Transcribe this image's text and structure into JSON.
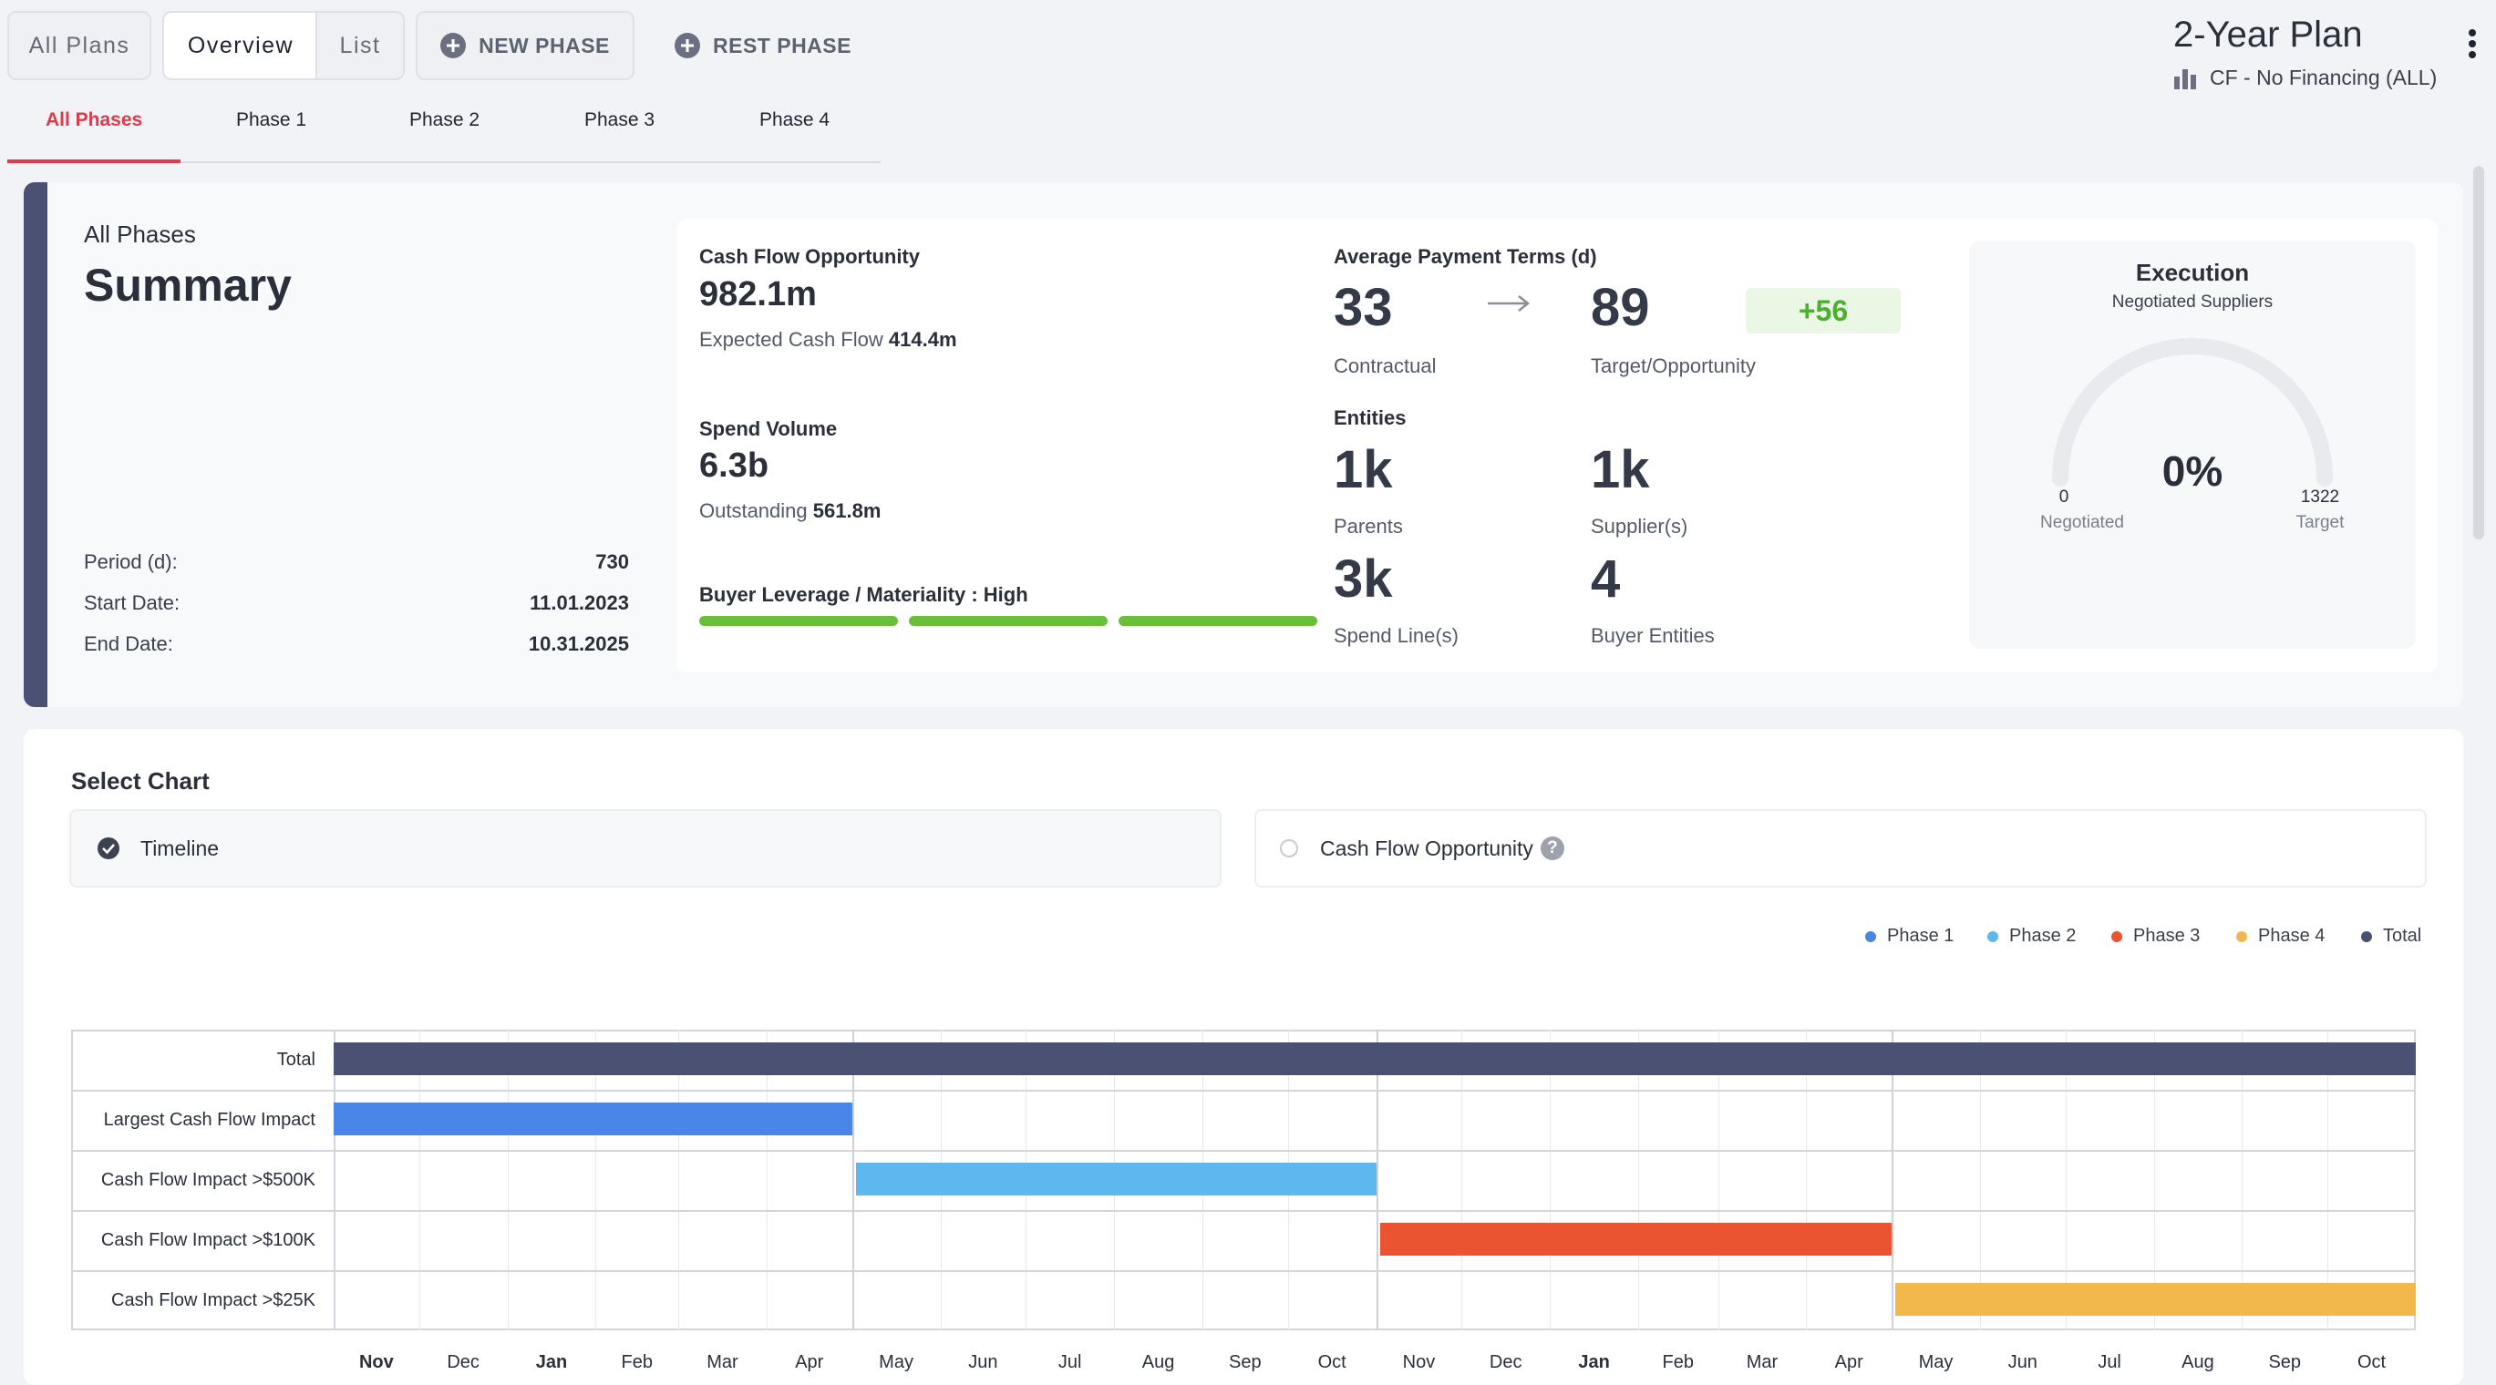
{
  "top_tabs": {
    "all_plans": "All Plans",
    "overview": "Overview",
    "list": "List"
  },
  "actions": {
    "new_phase": "NEW PHASE",
    "rest_phase": "REST PHASE"
  },
  "plan": {
    "title": "2-Year Plan",
    "subtitle": "CF - No Financing (ALL)"
  },
  "phase_tabs": [
    "All Phases",
    "Phase 1",
    "Phase 2",
    "Phase 3",
    "Phase 4"
  ],
  "summary": {
    "overline": "All Phases",
    "title": "Summary",
    "period_label": "Period (d):",
    "period_value": "730",
    "start_label": "Start Date:",
    "start_value": "11.01.2023",
    "end_label": "End Date:",
    "end_value": "10.31.2025"
  },
  "metrics": {
    "cash_flow_label": "Cash Flow Opportunity",
    "cash_flow_value": "982.1m",
    "expected_label": "Expected Cash Flow",
    "expected_value": "414.4m",
    "spend_label": "Spend Volume",
    "spend_value": "6.3b",
    "outstanding_label": "Outstanding",
    "outstanding_value": "561.8m",
    "leverage_label": "Buyer Leverage / Materiality : High",
    "leverage_level": 3,
    "leverage_max": 3,
    "apt_label": "Average Payment Terms (d)",
    "contractual_value": "33",
    "contractual_label": "Contractual",
    "target_value": "89",
    "target_label": "Target/Opportunity",
    "delta": "+56",
    "entities_label": "Entities",
    "parents_value": "1k",
    "parents_label": "Parents",
    "suppliers_value": "1k",
    "suppliers_label": "Supplier(s)",
    "spendlines_value": "3k",
    "spendlines_label": "Spend Line(s)",
    "buyer_value": "4",
    "buyer_label": "Buyer Entities"
  },
  "execution": {
    "title": "Execution",
    "subtitle": "Negotiated Suppliers",
    "percent": "0%",
    "min_value": "0",
    "min_label": "Negotiated",
    "max_value": "1322",
    "max_label": "Target",
    "progress": 0
  },
  "chart_select": {
    "title": "Select Chart",
    "options": [
      "Timeline",
      "Cash Flow Opportunity"
    ],
    "selected": "Timeline"
  },
  "colors": {
    "phase1": "#4a86e8",
    "phase2": "#5db8f0",
    "phase3": "#ea5430",
    "phase4": "#f2b84b",
    "total": "#4a5173",
    "accent": "#e0394a",
    "leverage": "#6abf3a"
  },
  "chart_data": {
    "type": "gantt",
    "legend": [
      "Phase 1",
      "Phase 2",
      "Phase 3",
      "Phase 4",
      "Total"
    ],
    "legend_placement": "top-right",
    "months": [
      "Nov",
      "Dec",
      "Jan",
      "Feb",
      "Mar",
      "Apr",
      "May",
      "Jun",
      "Jul",
      "Aug",
      "Sep",
      "Oct",
      "Nov",
      "Dec",
      "Jan",
      "Feb",
      "Mar",
      "Apr",
      "May",
      "Jun",
      "Jul",
      "Aug",
      "Sep",
      "Oct"
    ],
    "bold_months": [
      0,
      2,
      14
    ],
    "x_range": [
      "2023-11-01",
      "2025-10-31"
    ],
    "rows": [
      {
        "label": "Total",
        "series": "Total",
        "start": "2023-11-01",
        "end": "2025-10-31"
      },
      {
        "label": "Largest Cash Flow Impact",
        "series": "Phase 1",
        "start": "2023-11-01",
        "end": "2024-04-30"
      },
      {
        "label": "Cash Flow Impact >$500K",
        "series": "Phase 2",
        "start": "2024-05-01",
        "end": "2024-10-31"
      },
      {
        "label": "Cash Flow Impact >$100K",
        "series": "Phase 3",
        "start": "2024-11-01",
        "end": "2025-04-30"
      },
      {
        "label": "Cash Flow Impact >$25K",
        "series": "Phase 4",
        "start": "2025-05-01",
        "end": "2025-10-31"
      }
    ],
    "grid": true
  }
}
